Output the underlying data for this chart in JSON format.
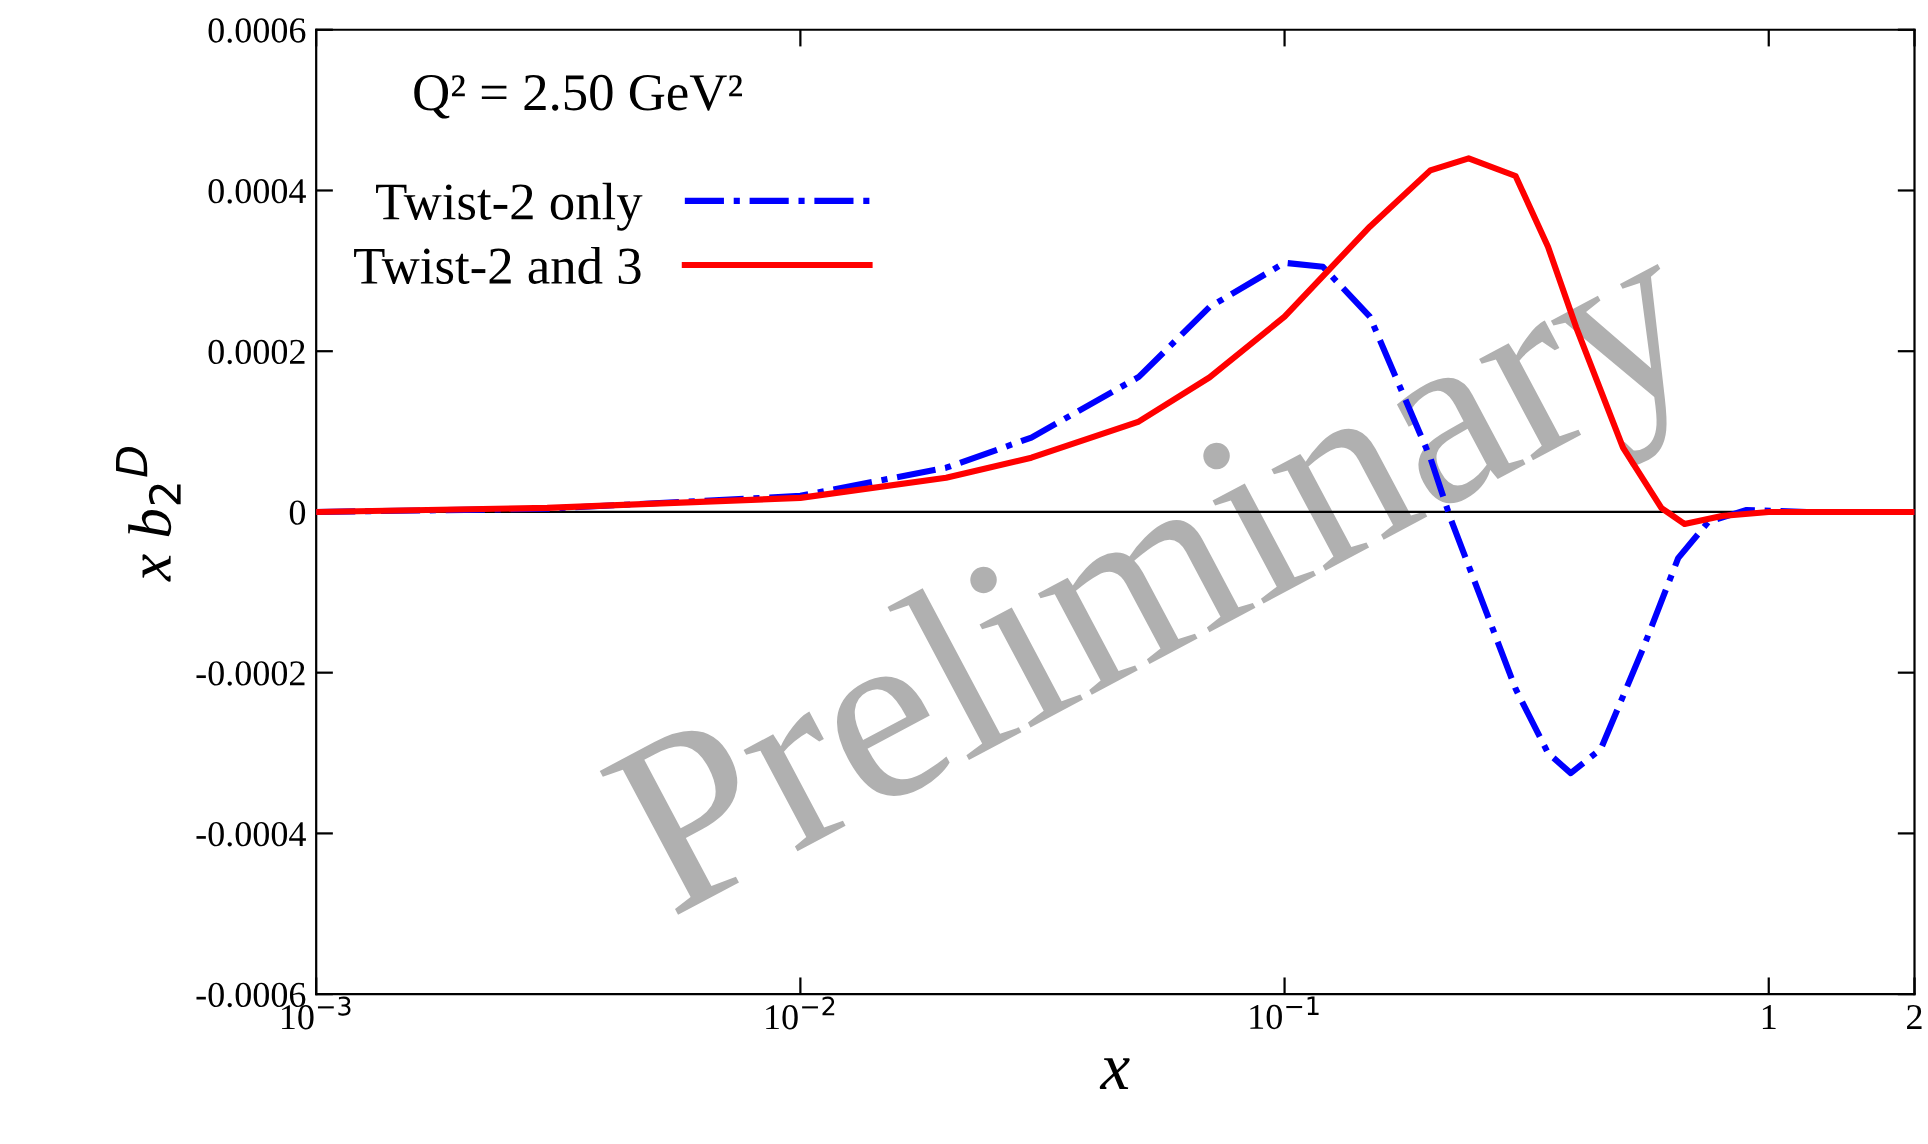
{
  "chart_data": {
    "type": "line",
    "xlabel": "x",
    "ylabel": "x b$_{2}$$^{D}$",
    "log": "x",
    "xlim": [
      0.001,
      2
    ],
    "xticks": [
      {
        "value": 0.001,
        "label": "10$^{−3}$"
      },
      {
        "value": 0.01,
        "label": "10$^{−2}$"
      },
      {
        "value": 0.1,
        "label": "10$^{−1}$"
      },
      1,
      2
    ],
    "ylim": [
      -0.0006,
      0.0006
    ],
    "yticks": [
      {
        "value": -0.0006,
        "label": "-0.0006"
      },
      {
        "value": -0.0004,
        "label": "-0.0004"
      },
      {
        "value": -0.0002,
        "label": "-0.0002"
      },
      0,
      0.0002,
      0.0004,
      0.0006
    ],
    "grid": false,
    "legend": "top left",
    "marker": "none",
    "annotations": [
      "Q² = 2.50 GeV²",
      "Preliminary"
    ],
    "ref_lines": [
      {
        "axis": "y",
        "value": 0,
        "color": "#000000",
        "line_style": "solid"
      }
    ],
    "series": [
      {
        "name": "Twist-2 only",
        "color": "#0000ff",
        "line_style": "dashdot",
        "x": [
          0.001,
          0.003,
          0.01,
          0.02,
          0.03,
          0.05,
          0.07,
          0.1,
          0.12,
          0.15,
          0.2,
          0.22,
          0.25,
          0.3,
          0.35,
          0.39,
          0.45,
          0.55,
          0.65,
          0.75,
          0.9,
          1.2,
          2
        ],
        "values": [
          0,
          4e-06,
          2e-05,
          5.5e-05,
          9.25e-05,
          0.000168,
          0.000255,
          0.00031,
          0.000305,
          0.000243,
          6.75e-05,
          -7.5e-06,
          -9.5e-05,
          -0.00022,
          -0.0003,
          -0.000325,
          -0.000295,
          -0.00017,
          -5.75e-05,
          -1.25e-05,
          2.5e-06,
          0,
          0
        ]
      },
      {
        "name": "Twist-2 and 3",
        "color": "#ff0000",
        "line_style": "solid",
        "x": [
          0.001,
          0.003,
          0.01,
          0.02,
          0.03,
          0.05,
          0.07,
          0.1,
          0.15,
          0.2,
          0.24,
          0.3,
          0.35,
          0.4,
          0.5,
          0.6,
          0.67,
          0.8,
          1,
          2
        ],
        "values": [
          0,
          5e-06,
          1.75e-05,
          4.25e-05,
          6.75e-05,
          0.0001125,
          0.0001675,
          0.000243,
          0.000355,
          0.000425,
          0.00044,
          0.000418,
          0.00033,
          0.00023,
          8e-05,
          5e-06,
          -1.5e-05,
          -5e-06,
          0,
          0
        ]
      }
    ]
  }
}
